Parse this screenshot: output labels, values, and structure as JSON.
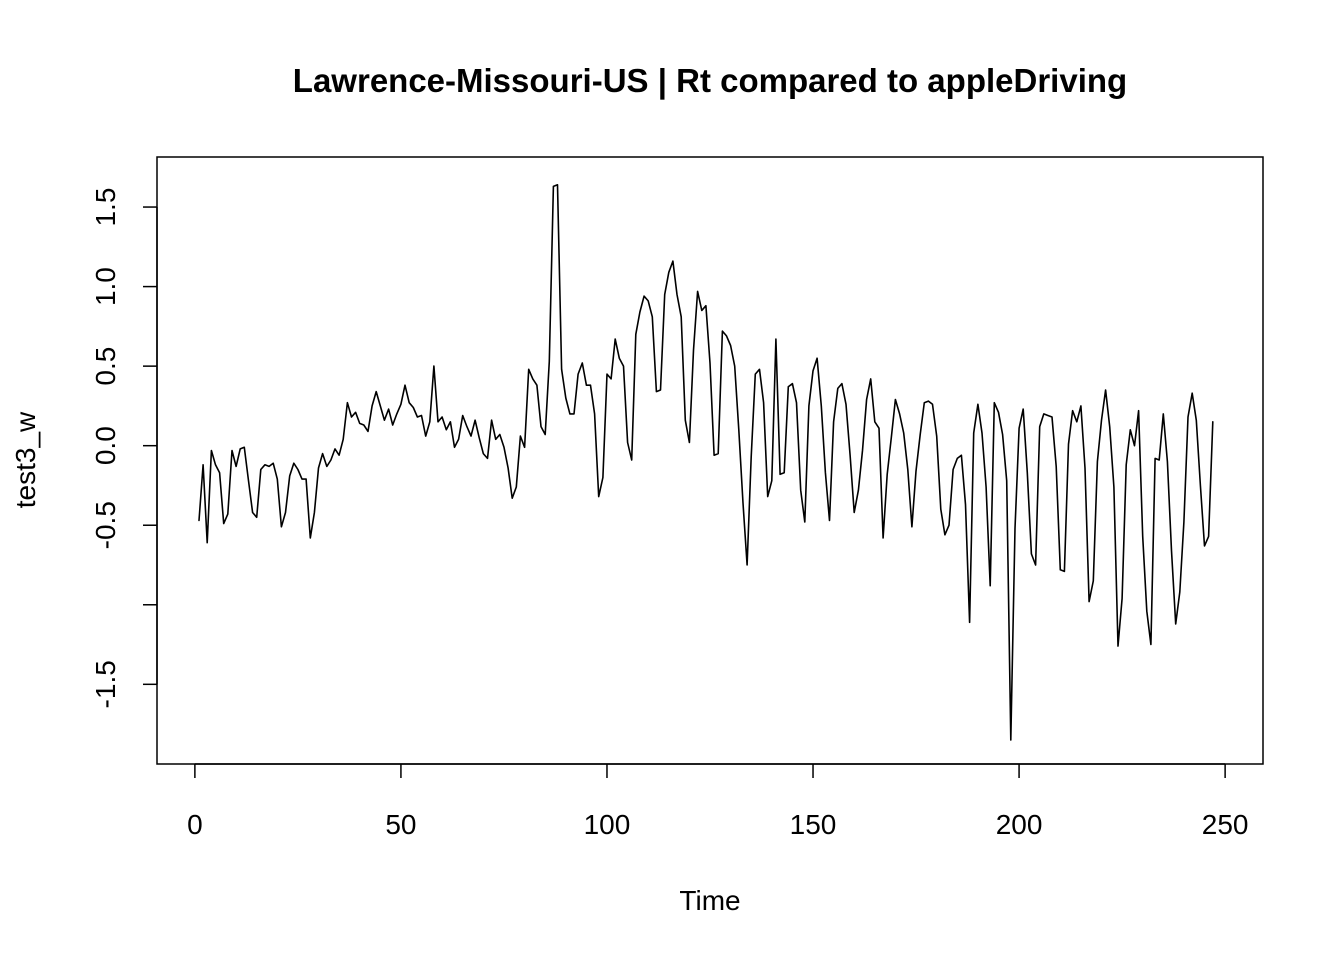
{
  "chart_data": {
    "type": "line",
    "title": "Lawrence-Missouri-US | Rt compared to appleDriving",
    "xlabel": "Time",
    "ylabel": "test3_w",
    "xlim": [
      1,
      249
    ],
    "ylim": [
      -1.85,
      1.67
    ],
    "x_ticks": [
      0,
      50,
      100,
      150,
      200,
      250
    ],
    "x_tick_labels": [
      "0",
      "50",
      "100",
      "150",
      "200",
      "250"
    ],
    "y_ticks": [
      -1.5,
      -1.0,
      -0.5,
      0.0,
      0.5,
      1.0,
      1.5
    ],
    "y_tick_labels": [
      "-1.5",
      "",
      "-0.5",
      "0.0",
      "0.5",
      "1.0",
      "1.5"
    ],
    "color": "#000000",
    "grid": false,
    "x_start": 1,
    "series": [
      {
        "values": [
          -0.47,
          -0.12,
          -0.61,
          -0.03,
          -0.12,
          -0.17,
          -0.49,
          -0.43,
          -0.03,
          -0.13,
          -0.02,
          -0.01,
          -0.22,
          -0.42,
          -0.45,
          -0.15,
          -0.12,
          -0.13,
          -0.11,
          -0.21,
          -0.51,
          -0.42,
          -0.19,
          -0.11,
          -0.15,
          -0.21,
          -0.21,
          -0.58,
          -0.42,
          -0.14,
          -0.05,
          -0.13,
          -0.09,
          -0.02,
          -0.06,
          0.04,
          0.27,
          0.18,
          0.21,
          0.14,
          0.13,
          0.09,
          0.25,
          0.34,
          0.25,
          0.16,
          0.23,
          0.13,
          0.2,
          0.26,
          0.38,
          0.27,
          0.24,
          0.18,
          0.19,
          0.06,
          0.15,
          0.5,
          0.15,
          0.18,
          0.1,
          0.15,
          -0.01,
          0.04,
          0.19,
          0.12,
          0.06,
          0.16,
          0.05,
          -0.05,
          -0.08,
          0.16,
          0.04,
          0.07,
          -0.01,
          -0.14,
          -0.33,
          -0.26,
          0.06,
          -0.01,
          0.48,
          0.42,
          0.38,
          0.12,
          0.07,
          0.53,
          1.63,
          1.64,
          0.48,
          0.3,
          0.2,
          0.2,
          0.45,
          0.52,
          0.38,
          0.38,
          0.2,
          -0.32,
          -0.2,
          0.45,
          0.42,
          0.67,
          0.55,
          0.5,
          0.02,
          -0.09,
          0.7,
          0.84,
          0.94,
          0.91,
          0.81,
          0.34,
          0.35,
          0.95,
          1.09,
          1.16,
          0.95,
          0.81,
          0.16,
          0.02,
          0.6,
          0.97,
          0.85,
          0.88,
          0.52,
          -0.06,
          -0.05,
          0.72,
          0.69,
          0.63,
          0.5,
          0.1,
          -0.36,
          -0.75,
          -0.07,
          0.45,
          0.48,
          0.27,
          -0.32,
          -0.22,
          0.67,
          -0.18,
          -0.17,
          0.37,
          0.39,
          0.27,
          -0.28,
          -0.48,
          0.25,
          0.47,
          0.55,
          0.25,
          -0.17,
          -0.47,
          0.15,
          0.36,
          0.39,
          0.26,
          -0.06,
          -0.42,
          -0.28,
          -0.03,
          0.29,
          0.42,
          0.15,
          0.11,
          -0.58,
          -0.18,
          0.05,
          0.29,
          0.2,
          0.08,
          -0.15,
          -0.51,
          -0.16,
          0.07,
          0.27,
          0.28,
          0.26,
          0.06,
          -0.4,
          -0.56,
          -0.5,
          -0.15,
          -0.08,
          -0.06,
          -0.37,
          -1.11,
          0.08,
          0.26,
          0.08,
          -0.26,
          -0.88,
          0.27,
          0.21,
          0.07,
          -0.22,
          -1.85,
          -0.52,
          0.11,
          0.23,
          -0.17,
          -0.68,
          -0.75,
          0.12,
          0.2,
          0.19,
          0.18,
          -0.13,
          -0.78,
          -0.79,
          0.01,
          0.22,
          0.15,
          0.25,
          -0.14,
          -0.98,
          -0.85,
          -0.1,
          0.16,
          0.35,
          0.12,
          -0.26,
          -1.26,
          -0.96,
          -0.12,
          0.1,
          0.0,
          0.22,
          -0.57,
          -1.04,
          -1.25,
          -0.08,
          -0.09,
          0.2,
          -0.1,
          -0.66,
          -1.12,
          -0.92,
          -0.48,
          0.18,
          0.33,
          0.16,
          -0.25,
          -0.63,
          -0.57,
          0.15
        ]
      }
    ]
  }
}
